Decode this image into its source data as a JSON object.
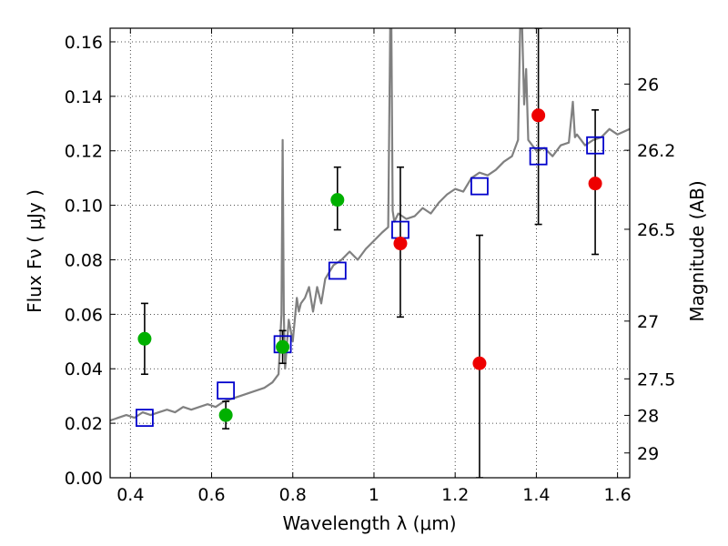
{
  "chart_data": {
    "type": "scatter",
    "xlabel": "Wavelength  λ (μm)",
    "ylabel": "Flux  Fν  ( μJy )",
    "y2label": "Magnitude (AB)",
    "xlim": [
      0.35,
      1.63
    ],
    "ylim": [
      0,
      0.165
    ],
    "grid": true,
    "x_ticks": [
      0.4,
      0.6,
      0.8,
      1.0,
      1.2,
      1.4,
      1.6
    ],
    "x_tick_labels": [
      "0.4",
      "0.6",
      "0.8",
      "1",
      "1.2",
      "1.4",
      "1.6"
    ],
    "y_ticks": [
      0.0,
      0.02,
      0.04,
      0.06,
      0.08,
      0.1,
      0.12,
      0.14,
      0.16
    ],
    "y_tick_labels": [
      "0.00",
      "0.02",
      "0.04",
      "0.06",
      "0.08",
      "0.10",
      "0.12",
      "0.14",
      "0.16"
    ],
    "y2_ticks": [
      {
        "label": "26",
        "flux": 0.1445
      },
      {
        "label": "26.2",
        "flux": 0.1202
      },
      {
        "label": "26.5",
        "flux": 0.0912
      },
      {
        "label": "27",
        "flux": 0.0575
      },
      {
        "label": "27.5",
        "flux": 0.0363
      },
      {
        "label": "28",
        "flux": 0.0229
      },
      {
        "label": "29",
        "flux": 0.0091
      }
    ],
    "colors": {
      "model": "#808080",
      "model_photometry": "#0000cc",
      "detected": "#00b000",
      "nir": "#ee0000",
      "errorbar": "#000000"
    },
    "series": [
      {
        "kind": "line",
        "color_key": "model",
        "x": [
          0.35,
          0.37,
          0.39,
          0.41,
          0.43,
          0.45,
          0.47,
          0.49,
          0.51,
          0.53,
          0.55,
          0.57,
          0.59,
          0.61,
          0.63,
          0.65,
          0.67,
          0.69,
          0.71,
          0.73,
          0.75,
          0.765,
          0.772,
          0.775,
          0.778,
          0.781,
          0.79,
          0.8,
          0.81,
          0.815,
          0.82,
          0.83,
          0.84,
          0.85,
          0.86,
          0.87,
          0.88,
          0.9,
          0.92,
          0.94,
          0.96,
          0.98,
          1.0,
          1.02,
          1.035,
          1.04,
          1.043,
          1.046,
          1.05,
          1.06,
          1.08,
          1.1,
          1.12,
          1.14,
          1.16,
          1.18,
          1.2,
          1.22,
          1.24,
          1.26,
          1.28,
          1.3,
          1.32,
          1.34,
          1.355,
          1.36,
          1.365,
          1.37,
          1.375,
          1.38,
          1.39,
          1.4,
          1.42,
          1.44,
          1.46,
          1.48,
          1.49,
          1.495,
          1.5,
          1.52,
          1.54,
          1.56,
          1.58,
          1.6,
          1.63
        ],
        "y": [
          0.021,
          0.022,
          0.023,
          0.022,
          0.024,
          0.023,
          0.024,
          0.025,
          0.024,
          0.026,
          0.025,
          0.026,
          0.027,
          0.026,
          0.028,
          0.029,
          0.03,
          0.031,
          0.032,
          0.033,
          0.035,
          0.038,
          0.06,
          0.124,
          0.06,
          0.04,
          0.058,
          0.05,
          0.066,
          0.061,
          0.064,
          0.066,
          0.07,
          0.061,
          0.07,
          0.064,
          0.073,
          0.078,
          0.08,
          0.083,
          0.08,
          0.084,
          0.087,
          0.09,
          0.092,
          0.165,
          0.165,
          0.098,
          0.094,
          0.097,
          0.095,
          0.096,
          0.099,
          0.097,
          0.101,
          0.104,
          0.106,
          0.105,
          0.11,
          0.112,
          0.111,
          0.113,
          0.116,
          0.118,
          0.124,
          0.165,
          0.165,
          0.137,
          0.15,
          0.124,
          0.122,
          0.12,
          0.121,
          0.118,
          0.122,
          0.123,
          0.138,
          0.125,
          0.126,
          0.122,
          0.124,
          0.125,
          0.128,
          0.126,
          0.128
        ]
      },
      {
        "kind": "points",
        "marker": "open-square",
        "color_key": "model_photometry",
        "x": [
          0.435,
          0.635,
          0.775,
          0.91,
          1.065,
          1.26,
          1.405,
          1.545
        ],
        "y": [
          0.022,
          0.032,
          0.049,
          0.076,
          0.091,
          0.107,
          0.118,
          0.122
        ]
      },
      {
        "kind": "points",
        "marker": "filled-circle",
        "color_key": "detected",
        "x": [
          0.435,
          0.635,
          0.775,
          0.91
        ],
        "y": [
          0.051,
          0.023,
          0.048,
          0.102
        ],
        "err_low": [
          0.013,
          0.005,
          0.006,
          0.011
        ],
        "err_high": [
          0.013,
          0.005,
          0.006,
          0.012
        ]
      },
      {
        "kind": "points",
        "marker": "filled-circle",
        "color_key": "nir",
        "x": [
          1.065,
          1.26,
          1.405,
          1.545
        ],
        "y": [
          0.086,
          0.042,
          0.133,
          0.108
        ],
        "err_low": [
          0.027,
          0.042,
          0.04,
          0.026
        ],
        "err_high": [
          0.028,
          0.047,
          0.032,
          0.027
        ]
      }
    ]
  }
}
